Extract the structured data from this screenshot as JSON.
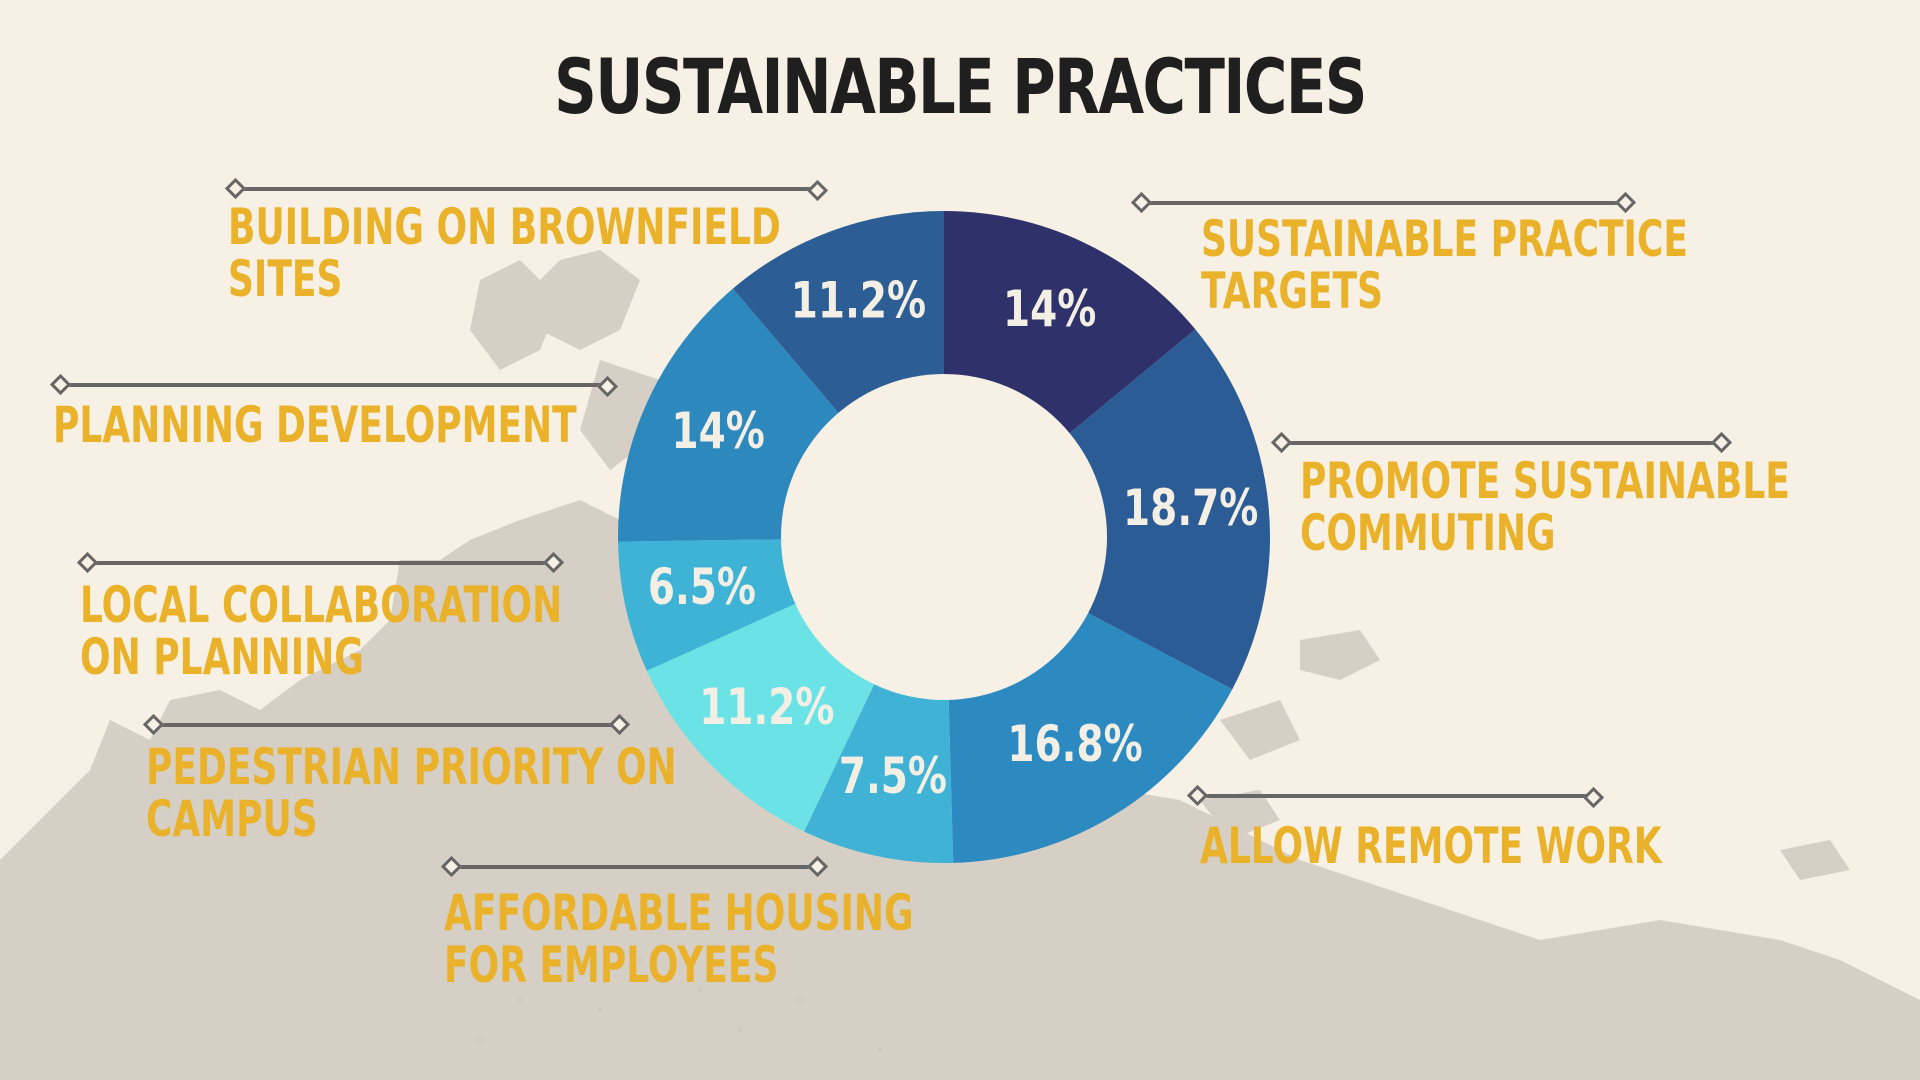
{
  "title": "SUSTAINABLE PRACTICES",
  "colors": {
    "background": "#f7f0e4",
    "map": "#d6cfc5",
    "label": "#e9b22a",
    "title": "#1f1f1f",
    "connector": "#666666",
    "slice_text": "#f3efe4"
  },
  "chart_data": {
    "type": "pie",
    "donut": true,
    "title": "SUSTAINABLE PRACTICES",
    "slices": [
      {
        "label": "SUSTAINABLE PRACTICE TARGETS",
        "value": 14,
        "display": "14%",
        "color": "#2f316a"
      },
      {
        "label": "PROMOTE SUSTAINABLE COMMUTING",
        "value": 18.7,
        "display": "18.7%",
        "color": "#2b5c95"
      },
      {
        "label": "ALLOW REMOTE WORK",
        "value": 16.8,
        "display": "16.8%",
        "color": "#2d8ac0"
      },
      {
        "label": "AFFORDABLE HOUSING FOR EMPLOYEES",
        "value": 7.5,
        "display": "7.5%",
        "color": "#3fb2d6"
      },
      {
        "label": "PEDESTRIAN PRIORITY ON CAMPUS",
        "value": 11.2,
        "display": "11.2%",
        "color": "#6be3e6"
      },
      {
        "label": "LOCAL COLLABORATION ON PLANNING",
        "value": 6.5,
        "display": "6.5%",
        "color": "#3fb3d6"
      },
      {
        "label": "PLANNING DEVELOPMENT",
        "value": 14,
        "display": "14%",
        "color": "#2d88bd"
      },
      {
        "label": "BUILDING ON BROWNFIELD SITES",
        "value": 11.2,
        "display": "11.2%",
        "color": "#2c5e95"
      }
    ]
  },
  "callouts": [
    {
      "lines": [
        "BUILDING ON BROWNFIELD",
        "SITES"
      ]
    },
    {
      "lines": [
        "PLANNING DEVELOPMENT"
      ]
    },
    {
      "lines": [
        "LOCAL COLLABORATION",
        "ON PLANNING"
      ]
    },
    {
      "lines": [
        "PEDESTRIAN PRIORITY ON",
        "CAMPUS"
      ]
    },
    {
      "lines": [
        "AFFORDABLE HOUSING",
        "FOR EMPLOYEES"
      ]
    },
    {
      "lines": [
        "SUSTAINABLE PRACTICE",
        "TARGETS"
      ]
    },
    {
      "lines": [
        "PROMOTE SUSTAINABLE",
        "COMMUTING"
      ]
    },
    {
      "lines": [
        "ALLOW REMOTE WORK"
      ]
    }
  ]
}
